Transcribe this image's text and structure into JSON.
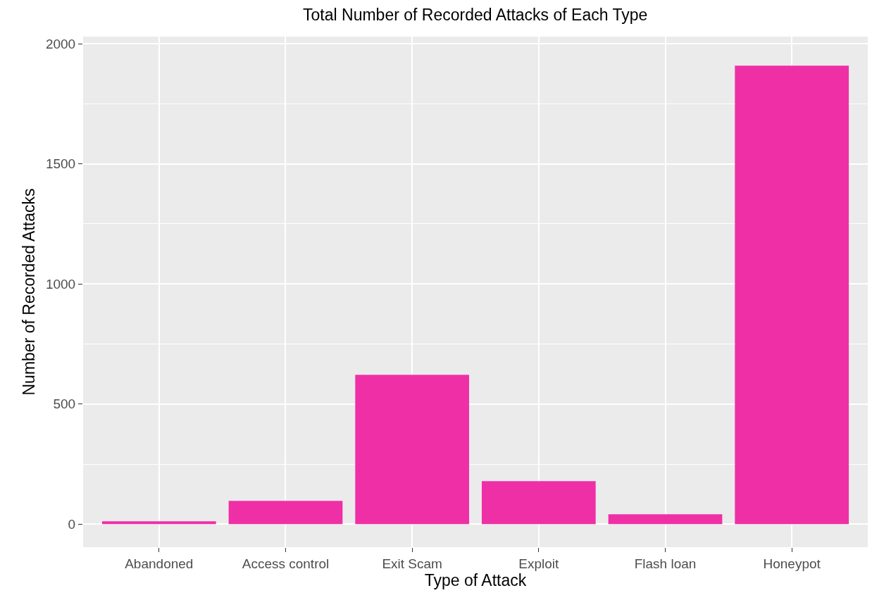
{
  "chart_data": {
    "type": "bar",
    "title": "Total Number of Recorded Attacks of Each Type",
    "xlabel": "Type of Attack",
    "ylabel": "Number of Recorded Attacks",
    "categories": [
      "Abandoned",
      "Access control",
      "Exit Scam",
      "Exploit",
      "Flash loan",
      "Honeypot"
    ],
    "values": [
      12,
      97,
      622,
      179,
      41,
      1909
    ],
    "color": "#ef2fa6",
    "ylim": [
      -96,
      2030
    ],
    "yticks": [
      0,
      500,
      1000,
      1500,
      2000
    ],
    "grid": true
  }
}
